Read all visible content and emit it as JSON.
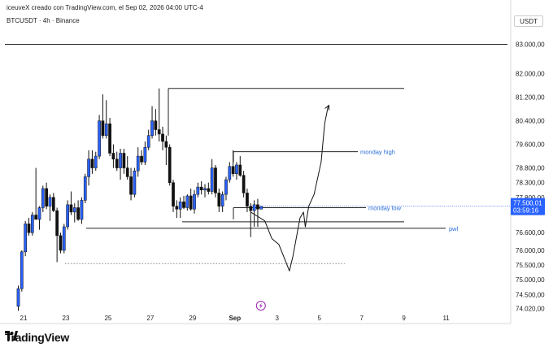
{
  "header": {
    "attribution": "iceuveX creado con TradingView.com, el Sep 02, 2026 04:00 UTC-4",
    "symbol": "BTCUSDT · 4h · Binance",
    "currency": "USDT"
  },
  "brand": {
    "name": "TradingView"
  },
  "colors": {
    "up": "#2962ff",
    "down": "#111111",
    "level": "#2a6dd4",
    "price_tag": "#2962ff"
  },
  "chart_data": {
    "type": "candlestick",
    "interval": "4h",
    "ylim": [
      73900,
      83400
    ],
    "x_ticks": [
      {
        "label": "21",
        "index": 1.5
      },
      {
        "label": "23",
        "index": 13.5
      },
      {
        "label": "25",
        "index": 25.5
      },
      {
        "label": "27",
        "index": 37.5
      },
      {
        "label": "29",
        "index": 49.5
      },
      {
        "label": "Sep",
        "index": 61.5
      },
      {
        "label": "3",
        "index": 73.5
      },
      {
        "label": "5",
        "index": 85.5
      },
      {
        "label": "7",
        "index": 97.5
      },
      {
        "label": "9",
        "index": 109.5
      },
      {
        "label": "11",
        "index": 121.5
      }
    ],
    "y_ticks": [
      {
        "label": "83.000,00",
        "value": 83000
      },
      {
        "label": "82.000,00",
        "value": 82000
      },
      {
        "label": "81.200,00",
        "value": 81200
      },
      {
        "label": "80.400,00",
        "value": 80400
      },
      {
        "label": "79.600,00",
        "value": 79600
      },
      {
        "label": "78.800,00",
        "value": 78800
      },
      {
        "label": "78.300,00",
        "value": 78300
      },
      {
        "label": "77.800,00",
        "value": 77800
      },
      {
        "label": "76.600,00",
        "value": 76600
      },
      {
        "label": "76.000,00",
        "value": 76000
      },
      {
        "label": "75.500,00",
        "value": 75500
      },
      {
        "label": "75.000,00",
        "value": 75000
      },
      {
        "label": "74.500,00",
        "value": 74500
      },
      {
        "label": "74.020,00",
        "value": 74020
      }
    ],
    "last_price": {
      "label": "77.500,01",
      "value": 77500,
      "countdown": "03:59:16"
    },
    "candles": [
      {
        "o": 74100,
        "h": 74800,
        "l": 73950,
        "c": 74700
      },
      {
        "o": 74700,
        "h": 76000,
        "l": 74600,
        "c": 75950
      },
      {
        "o": 75950,
        "h": 77000,
        "l": 75800,
        "c": 76900
      },
      {
        "o": 76900,
        "h": 77100,
        "l": 76500,
        "c": 76600
      },
      {
        "o": 76600,
        "h": 77300,
        "l": 76500,
        "c": 77200
      },
      {
        "o": 77200,
        "h": 78800,
        "l": 77050,
        "c": 77050
      },
      {
        "o": 77050,
        "h": 77500,
        "l": 76700,
        "c": 77450
      },
      {
        "o": 77450,
        "h": 78200,
        "l": 77300,
        "c": 78100
      },
      {
        "o": 78100,
        "h": 78300,
        "l": 77400,
        "c": 77500
      },
      {
        "o": 77500,
        "h": 77900,
        "l": 77000,
        "c": 77800
      },
      {
        "o": 77800,
        "h": 77950,
        "l": 77300,
        "c": 77350
      },
      {
        "o": 77350,
        "h": 77450,
        "l": 75600,
        "c": 76500
      },
      {
        "o": 76500,
        "h": 76600,
        "l": 75900,
        "c": 76000
      },
      {
        "o": 76000,
        "h": 76900,
        "l": 75900,
        "c": 76800
      },
      {
        "o": 76800,
        "h": 77700,
        "l": 76700,
        "c": 77550
      },
      {
        "o": 77550,
        "h": 78000,
        "l": 77200,
        "c": 77300
      },
      {
        "o": 77300,
        "h": 77600,
        "l": 76950,
        "c": 77450
      },
      {
        "o": 77450,
        "h": 77700,
        "l": 77000,
        "c": 77050
      },
      {
        "o": 77050,
        "h": 77800,
        "l": 76900,
        "c": 77700
      },
      {
        "o": 77700,
        "h": 78600,
        "l": 77600,
        "c": 78500
      },
      {
        "o": 78500,
        "h": 79400,
        "l": 78200,
        "c": 79100
      },
      {
        "o": 79100,
        "h": 79400,
        "l": 78600,
        "c": 78800
      },
      {
        "o": 78800,
        "h": 79350,
        "l": 78700,
        "c": 79200
      },
      {
        "o": 79200,
        "h": 80600,
        "l": 79100,
        "c": 80400
      },
      {
        "o": 80400,
        "h": 81300,
        "l": 79800,
        "c": 79900
      },
      {
        "o": 79900,
        "h": 81100,
        "l": 79800,
        "c": 80300
      },
      {
        "o": 80300,
        "h": 80500,
        "l": 79200,
        "c": 79300
      },
      {
        "o": 79300,
        "h": 79600,
        "l": 78800,
        "c": 79100
      },
      {
        "o": 79100,
        "h": 79350,
        "l": 78700,
        "c": 78800
      },
      {
        "o": 78800,
        "h": 79450,
        "l": 78400,
        "c": 79300
      },
      {
        "o": 79300,
        "h": 79450,
        "l": 78600,
        "c": 78800
      },
      {
        "o": 78800,
        "h": 79200,
        "l": 78400,
        "c": 78500
      },
      {
        "o": 78500,
        "h": 78800,
        "l": 77700,
        "c": 77900
      },
      {
        "o": 77900,
        "h": 78800,
        "l": 77800,
        "c": 78700
      },
      {
        "o": 78700,
        "h": 79500,
        "l": 78500,
        "c": 79200
      },
      {
        "o": 79200,
        "h": 79400,
        "l": 78900,
        "c": 79000
      },
      {
        "o": 79000,
        "h": 79700,
        "l": 78900,
        "c": 79500
      },
      {
        "o": 79500,
        "h": 80100,
        "l": 79400,
        "c": 79900
      },
      {
        "o": 79900,
        "h": 80900,
        "l": 79800,
        "c": 80400
      },
      {
        "o": 80400,
        "h": 80800,
        "l": 79900,
        "c": 80100
      },
      {
        "o": 80100,
        "h": 81500,
        "l": 79700,
        "c": 79950
      },
      {
        "o": 79950,
        "h": 80200,
        "l": 79400,
        "c": 79700
      },
      {
        "o": 79700,
        "h": 79900,
        "l": 78900,
        "c": 79500
      },
      {
        "o": 79500,
        "h": 79600,
        "l": 78200,
        "c": 78300
      },
      {
        "o": 78300,
        "h": 78400,
        "l": 77300,
        "c": 77500
      },
      {
        "o": 77500,
        "h": 77700,
        "l": 77100,
        "c": 77400
      },
      {
        "o": 77400,
        "h": 77800,
        "l": 77100,
        "c": 77650
      },
      {
        "o": 77650,
        "h": 77850,
        "l": 77400,
        "c": 77450
      },
      {
        "o": 77450,
        "h": 77900,
        "l": 77350,
        "c": 77850
      },
      {
        "o": 77850,
        "h": 78100,
        "l": 77350,
        "c": 77400
      },
      {
        "o": 77400,
        "h": 78050,
        "l": 77250,
        "c": 77900
      },
      {
        "o": 77900,
        "h": 78300,
        "l": 77800,
        "c": 78150
      },
      {
        "o": 78150,
        "h": 78350,
        "l": 77900,
        "c": 78050
      },
      {
        "o": 78050,
        "h": 78250,
        "l": 77800,
        "c": 78100
      },
      {
        "o": 78100,
        "h": 78300,
        "l": 77900,
        "c": 78000
      },
      {
        "o": 78000,
        "h": 79100,
        "l": 77900,
        "c": 78800
      },
      {
        "o": 78800,
        "h": 78900,
        "l": 77800,
        "c": 77950
      },
      {
        "o": 77950,
        "h": 78100,
        "l": 77300,
        "c": 77500
      },
      {
        "o": 77500,
        "h": 78000,
        "l": 77300,
        "c": 77900
      },
      {
        "o": 77900,
        "h": 78500,
        "l": 77700,
        "c": 78400
      },
      {
        "o": 78400,
        "h": 79000,
        "l": 78300,
        "c": 78850
      },
      {
        "o": 78850,
        "h": 79400,
        "l": 78500,
        "c": 78600
      },
      {
        "o": 78600,
        "h": 79000,
        "l": 78400,
        "c": 78900
      },
      {
        "o": 78900,
        "h": 79200,
        "l": 78500,
        "c": 78550
      },
      {
        "o": 78550,
        "h": 78700,
        "l": 77800,
        "c": 77950
      },
      {
        "o": 77950,
        "h": 78100,
        "l": 77300,
        "c": 77500
      },
      {
        "o": 77500,
        "h": 77600,
        "l": 76450,
        "c": 77350
      },
      {
        "o": 77350,
        "h": 77700,
        "l": 76800,
        "c": 77550
      },
      {
        "o": 77550,
        "h": 77750,
        "l": 76800,
        "c": 77400
      },
      {
        "o": 77400,
        "h": 77500,
        "l": 77450,
        "c": 77500
      }
    ],
    "levels": [
      {
        "name": "",
        "value": 83000
      },
      {
        "name": "",
        "value": 81500
      },
      {
        "name": "monday high",
        "value": 79350
      },
      {
        "name": "monday low",
        "value": 77450
      },
      {
        "name": "",
        "value": 76970
      },
      {
        "name": "pwl",
        "value": 76750
      },
      {
        "name": "",
        "value": 75550
      }
    ],
    "projection": [
      [
        66,
        77300
      ],
      [
        70,
        77000
      ],
      [
        72,
        76400
      ],
      [
        74,
        76200
      ],
      [
        76,
        75600
      ],
      [
        77,
        75300
      ],
      [
        78,
        75800
      ],
      [
        80,
        77100
      ],
      [
        81,
        77300
      ],
      [
        81.5,
        76800
      ],
      [
        82.5,
        77500
      ],
      [
        84,
        77900
      ],
      [
        86,
        79000
      ],
      [
        87,
        80300
      ],
      [
        88,
        80900
      ]
    ]
  }
}
